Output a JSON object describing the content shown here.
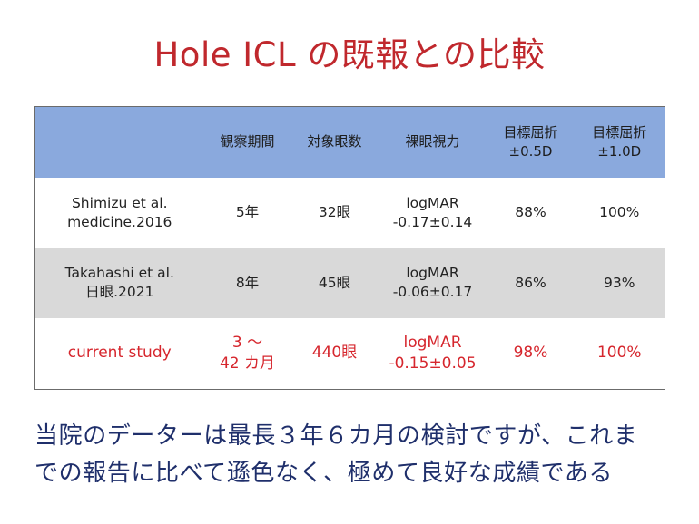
{
  "title": "Hole ICL の既報との比較",
  "table": {
    "headers": [
      [
        ""
      ],
      [
        "観察期間"
      ],
      [
        "対象眼数"
      ],
      [
        "裸眼視力"
      ],
      [
        "目標屈折",
        "±0.5D"
      ],
      [
        "目標屈折",
        "±1.0D"
      ]
    ],
    "rows": [
      {
        "study": [
          "Shimizu et al.",
          "medicine.2016"
        ],
        "period": [
          "5年"
        ],
        "eyes": "32眼",
        "ucva": [
          "logMAR",
          "-0.17±0.14"
        ],
        "within_05d": "88%",
        "within_10d": "100%"
      },
      {
        "study": [
          "Takahashi et al.",
          "日眼.2021"
        ],
        "period": [
          "8年"
        ],
        "eyes": "45眼",
        "ucva": [
          "logMAR",
          "-0.06±0.17"
        ],
        "within_05d": "86%",
        "within_10d": "93%"
      },
      {
        "study": [
          "current study"
        ],
        "period": [
          "3 ～",
          "42 カ月"
        ],
        "eyes": "440眼",
        "ucva": [
          "logMAR",
          "-0.15±0.05"
        ],
        "within_05d": "98%",
        "within_10d": "100%"
      }
    ]
  },
  "note_lines": [
    "当院のデーターは最長３年６カ月の検討ですが、これま",
    "での報告に比べて遜色なく、極めて良好な成績である"
  ],
  "colors": {
    "title": "#c0282d",
    "header_bg": "#8aa9dd",
    "stripe_bg": "#d9d9d9",
    "highlight_text": "#d6262d",
    "note_text": "#1f2f6b"
  }
}
